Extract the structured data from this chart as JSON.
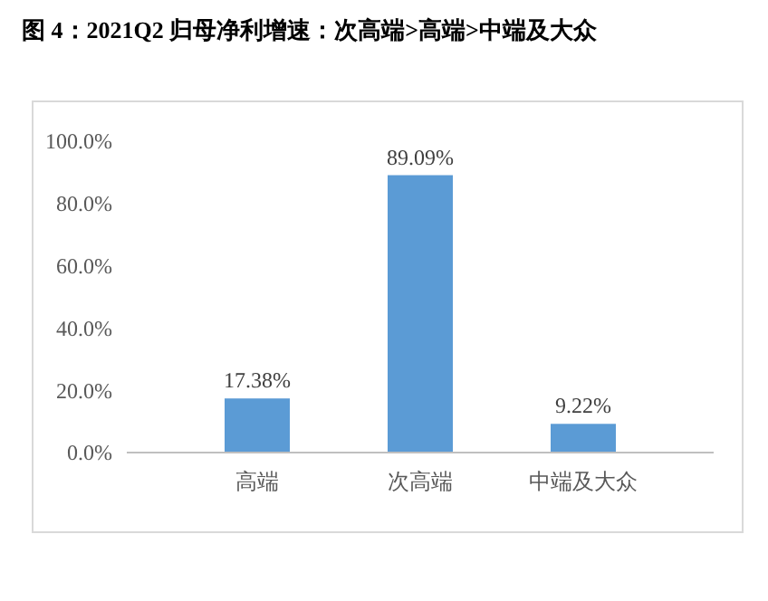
{
  "chart_data": {
    "type": "bar",
    "title": "图 4：2021Q2 归母净利增速：次高端>高端>中端及大众",
    "categories": [
      "高端",
      "次高端",
      "中端及大众"
    ],
    "values": [
      17.38,
      89.09,
      9.22
    ],
    "value_labels": [
      "17.38%",
      "89.09%",
      "9.22%"
    ],
    "color": "#5b9bd5",
    "ylim": [
      0,
      100
    ],
    "yticks": [
      {
        "value": 0,
        "label": "0.0%"
      },
      {
        "value": 20,
        "label": "20.0%"
      },
      {
        "value": 40,
        "label": "40.0%"
      },
      {
        "value": 60,
        "label": "60.0%"
      },
      {
        "value": 80,
        "label": "80.0%"
      },
      {
        "value": 100,
        "label": "100.0%"
      }
    ],
    "grid": false
  }
}
